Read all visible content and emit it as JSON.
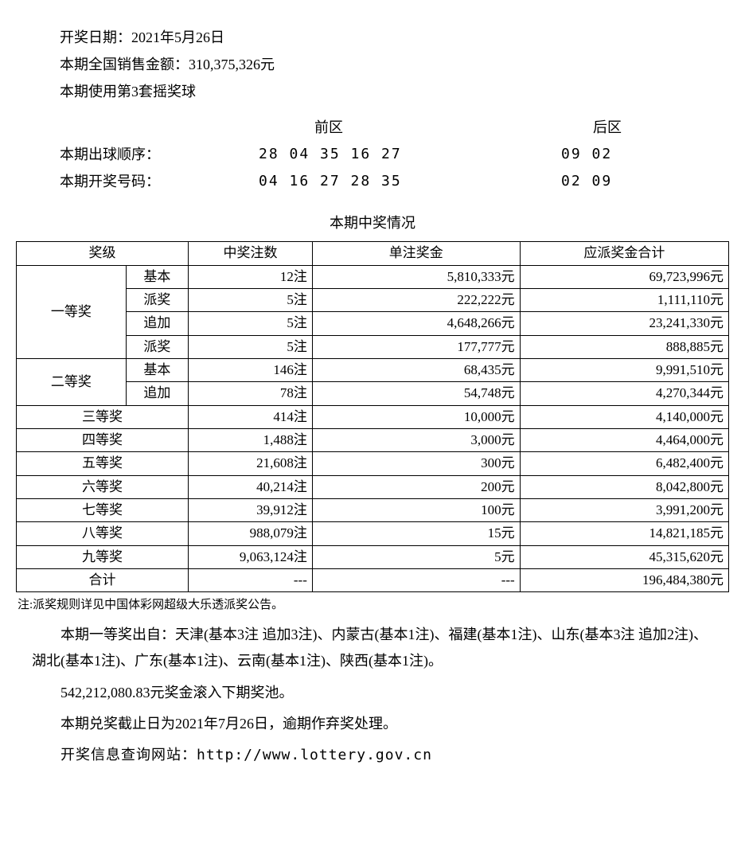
{
  "header": {
    "draw_date": "开奖日期：2021年5月26日",
    "national_sales": "本期全国销售金额：310,375,326元",
    "ball_set": "本期使用第3套摇奖球",
    "front_label": "前区",
    "back_label": "后区",
    "draw_order_label": "本期出球顺序：",
    "draw_order_front": "28 04 35 16 27",
    "draw_order_back": "09 02",
    "winning_label": "本期开奖号码：",
    "winning_front": "04 16 27 28 35",
    "winning_back": "02 09"
  },
  "table": {
    "title": "本期中奖情况",
    "head": {
      "level": "奖级",
      "count": "中奖注数",
      "per": "单注奖金",
      "total": "应派奖金合计"
    },
    "levels": {
      "l1": "一等奖",
      "l2": "二等奖",
      "l3": "三等奖",
      "l4": "四等奖",
      "l5": "五等奖",
      "l6": "六等奖",
      "l7": "七等奖",
      "l8": "八等奖",
      "l9": "九等奖",
      "sum": "合计"
    },
    "subs": {
      "basic": "基本",
      "bonus": "派奖",
      "add": "追加"
    },
    "rows": {
      "r1a": {
        "count": "12注",
        "per": "5,810,333元",
        "total": "69,723,996元"
      },
      "r1b": {
        "count": "5注",
        "per": "222,222元",
        "total": "1,111,110元"
      },
      "r1c": {
        "count": "5注",
        "per": "4,648,266元",
        "total": "23,241,330元"
      },
      "r1d": {
        "count": "5注",
        "per": "177,777元",
        "total": "888,885元"
      },
      "r2a": {
        "count": "146注",
        "per": "68,435元",
        "total": "9,991,510元"
      },
      "r2b": {
        "count": "78注",
        "per": "54,748元",
        "total": "4,270,344元"
      },
      "r3": {
        "count": "414注",
        "per": "10,000元",
        "total": "4,140,000元"
      },
      "r4": {
        "count": "1,488注",
        "per": "3,000元",
        "total": "4,464,000元"
      },
      "r5": {
        "count": "21,608注",
        "per": "300元",
        "total": "6,482,400元"
      },
      "r6": {
        "count": "40,214注",
        "per": "200元",
        "total": "8,042,800元"
      },
      "r7": {
        "count": "39,912注",
        "per": "100元",
        "total": "3,991,200元"
      },
      "r8": {
        "count": "988,079注",
        "per": "15元",
        "total": "14,821,185元"
      },
      "r9": {
        "count": "9,063,124注",
        "per": "5元",
        "total": "45,315,620元"
      },
      "sum": {
        "count": "---",
        "per": "---",
        "total": "196,484,380元"
      }
    }
  },
  "footer": {
    "note": "注:派奖规则详见中国体彩网超级大乐透派奖公告。",
    "winners": "本期一等奖出自：天津(基本3注 追加3注)、内蒙古(基本1注)、福建(基本1注)、山东(基本3注 追加2注)、湖北(基本1注)、广东(基本1注)、云南(基本1注)、陕西(基本1注)。",
    "rollover": "542,212,080.83元奖金滚入下期奖池。",
    "deadline": "本期兑奖截止日为2021年7月26日，逾期作弃奖处理。",
    "website": "开奖信息查询网站：http://www.lottery.gov.cn"
  }
}
